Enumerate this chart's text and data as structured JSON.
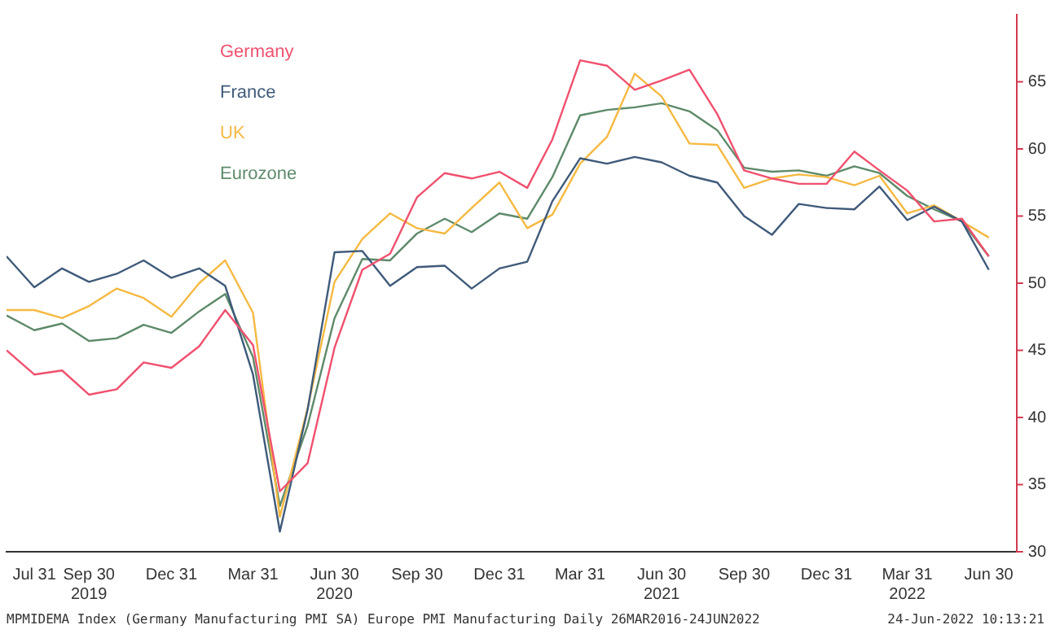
{
  "chart_data": {
    "type": "line",
    "x": [
      "2019-06-30",
      "2019-07-31",
      "2019-08-31",
      "2019-09-30",
      "2019-10-31",
      "2019-11-30",
      "2019-12-31",
      "2020-01-31",
      "2020-02-29",
      "2020-03-31",
      "2020-04-30",
      "2020-05-31",
      "2020-06-30",
      "2020-07-31",
      "2020-08-31",
      "2020-09-30",
      "2020-10-31",
      "2020-11-30",
      "2020-12-31",
      "2021-01-31",
      "2021-02-28",
      "2021-03-31",
      "2021-04-30",
      "2021-05-31",
      "2021-06-30",
      "2021-07-31",
      "2021-08-31",
      "2021-09-30",
      "2021-10-31",
      "2021-11-30",
      "2021-12-31",
      "2022-01-31",
      "2022-02-28",
      "2022-03-31",
      "2022-04-30",
      "2022-05-31",
      "2022-06-30"
    ],
    "series": [
      {
        "name": "Germany",
        "color": "#f0506e",
        "values": [
          45.0,
          43.2,
          43.5,
          41.7,
          42.1,
          44.1,
          43.7,
          45.3,
          48.0,
          45.4,
          34.5,
          36.6,
          45.2,
          51.0,
          52.2,
          56.4,
          58.2,
          57.8,
          58.3,
          57.1,
          60.7,
          66.6,
          66.2,
          64.4,
          65.1,
          65.9,
          62.6,
          58.4,
          57.8,
          57.4,
          57.4,
          59.8,
          58.4,
          56.9,
          54.6,
          54.8,
          52.0
        ]
      },
      {
        "name": "France",
        "color": "#3f5a7a",
        "values": [
          52.0,
          49.7,
          51.1,
          50.1,
          50.7,
          51.7,
          50.4,
          51.1,
          49.8,
          43.2,
          31.5,
          40.6,
          52.3,
          52.4,
          49.8,
          51.2,
          51.3,
          49.6,
          51.1,
          51.6,
          56.1,
          59.3,
          58.9,
          59.4,
          59.0,
          58.0,
          57.5,
          55.0,
          53.6,
          55.9,
          55.6,
          55.5,
          57.2,
          54.7,
          55.7,
          54.6,
          51.0
        ]
      },
      {
        "name": "UK",
        "color": "#f5b942",
        "values": [
          48.0,
          48.0,
          47.4,
          48.3,
          49.6,
          48.9,
          47.5,
          50.0,
          51.7,
          47.8,
          32.6,
          40.7,
          50.1,
          53.3,
          55.2,
          54.1,
          53.7,
          55.6,
          57.5,
          54.1,
          55.1,
          58.9,
          60.9,
          65.6,
          63.9,
          60.4,
          60.3,
          57.1,
          57.8,
          58.1,
          57.9,
          57.3,
          58.0,
          55.2,
          55.8,
          54.6,
          53.4
        ]
      },
      {
        "name": "Eurozone",
        "color": "#5e8a6a",
        "values": [
          47.6,
          46.5,
          47.0,
          45.7,
          45.9,
          46.9,
          46.3,
          47.9,
          49.2,
          44.5,
          33.4,
          39.4,
          47.4,
          51.8,
          51.7,
          53.7,
          54.8,
          53.8,
          55.2,
          54.8,
          57.9,
          62.5,
          62.9,
          63.1,
          63.4,
          62.8,
          61.4,
          58.6,
          58.3,
          58.4,
          58.0,
          58.7,
          58.2,
          56.5,
          55.5,
          54.6,
          52.0
        ]
      }
    ],
    "xlim": [
      "2019-06-30",
      "2022-07-31"
    ],
    "xticks": [
      {
        "value": "2019-07-31",
        "label": "Jul 31"
      },
      {
        "value": "2019-09-30",
        "label": "Sep 30\n2019"
      },
      {
        "value": "2019-12-31",
        "label": "Dec 31"
      },
      {
        "value": "2020-03-31",
        "label": "Mar 31"
      },
      {
        "value": "2020-06-30",
        "label": "Jun 30\n2020"
      },
      {
        "value": "2020-09-30",
        "label": "Sep 30"
      },
      {
        "value": "2020-12-31",
        "label": "Dec 31"
      },
      {
        "value": "2021-03-31",
        "label": "Mar 31"
      },
      {
        "value": "2021-06-30",
        "label": "Jun 30\n2021"
      },
      {
        "value": "2021-09-30",
        "label": "Sep 30"
      },
      {
        "value": "2021-12-31",
        "label": "Dec 31"
      },
      {
        "value": "2022-03-31",
        "label": "Mar 31\n2022"
      },
      {
        "value": "2022-06-30",
        "label": "Jun 30"
      }
    ],
    "ylim": [
      30,
      70
    ],
    "yticks": [
      30,
      35,
      40,
      45,
      50,
      55,
      60,
      65
    ],
    "grid": false,
    "legend": "top left",
    "marker": "none",
    "annotations": [
      "MPMIDEMA Index (Germany Manufacturing PMI SA) Europe PMI Manufacturing  Daily 26MAR2016-24JUN2022",
      "24-Jun-2022 10:13:21"
    ]
  }
}
